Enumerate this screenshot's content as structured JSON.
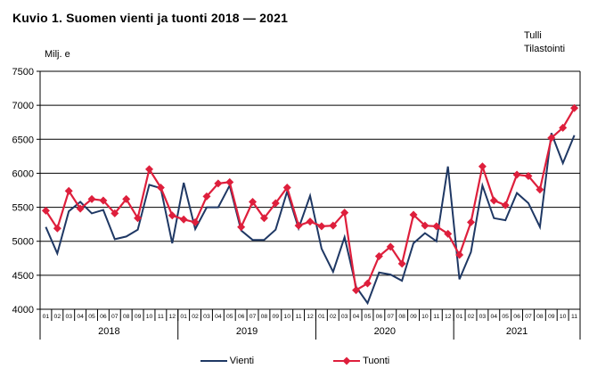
{
  "source": {
    "line1": "Tulli",
    "line2": "Tilastointi"
  },
  "chart_data": {
    "type": "line",
    "title": "Kuvio 1. Suomen vienti ja tuonti 2018 — 2021",
    "ylabel": "Milj. e",
    "xlabel": "",
    "ylim": [
      4000,
      7500
    ],
    "yticks": [
      4000,
      4500,
      5000,
      5500,
      6000,
      6500,
      7000,
      7500
    ],
    "grid": "horizontal",
    "legend_position": "bottom-center",
    "x_labels": [
      "01",
      "02",
      "03",
      "04",
      "05",
      "06",
      "07",
      "08",
      "09",
      "10",
      "11",
      "12",
      "01",
      "02",
      "03",
      "04",
      "05",
      "06",
      "07",
      "08",
      "09",
      "10",
      "11",
      "12",
      "01",
      "02",
      "03",
      "04",
      "05",
      "06",
      "07",
      "08",
      "09",
      "10",
      "11",
      "12",
      "01",
      "02",
      "03",
      "04",
      "05",
      "06",
      "07",
      "08",
      "09",
      "10",
      "11"
    ],
    "year_groups": [
      {
        "label": "2018",
        "months": 12
      },
      {
        "label": "2019",
        "months": 12
      },
      {
        "label": "2020",
        "months": 12
      },
      {
        "label": "2021",
        "months": 11
      }
    ],
    "series": [
      {
        "name": "Vienti",
        "color": "#1F3864",
        "marker": "none",
        "values": [
          5210,
          4820,
          5440,
          5580,
          5410,
          5460,
          5030,
          5070,
          5170,
          5830,
          5780,
          4970,
          5860,
          5180,
          5500,
          5500,
          5820,
          5160,
          5020,
          5020,
          5170,
          5730,
          5190,
          5670,
          4890,
          4550,
          5060,
          4330,
          4090,
          4540,
          4510,
          4420,
          4970,
          5120,
          5000,
          6100,
          4440,
          4840,
          5820,
          5340,
          5310,
          5710,
          5560,
          5210,
          6590,
          6150,
          6560
        ]
      },
      {
        "name": "Tuonti",
        "color": "#DE1F3C",
        "marker": "diamond",
        "values": [
          5450,
          5190,
          5740,
          5480,
          5620,
          5600,
          5410,
          5620,
          5340,
          6060,
          5790,
          5380,
          5320,
          5280,
          5660,
          5850,
          5870,
          5210,
          5580,
          5340,
          5560,
          5790,
          5230,
          5290,
          5220,
          5230,
          5420,
          4280,
          4380,
          4780,
          4920,
          4670,
          5390,
          5230,
          5220,
          5110,
          4800,
          5280,
          6100,
          5600,
          5530,
          5980,
          5960,
          5760,
          6520,
          6670,
          6960
        ]
      }
    ]
  }
}
